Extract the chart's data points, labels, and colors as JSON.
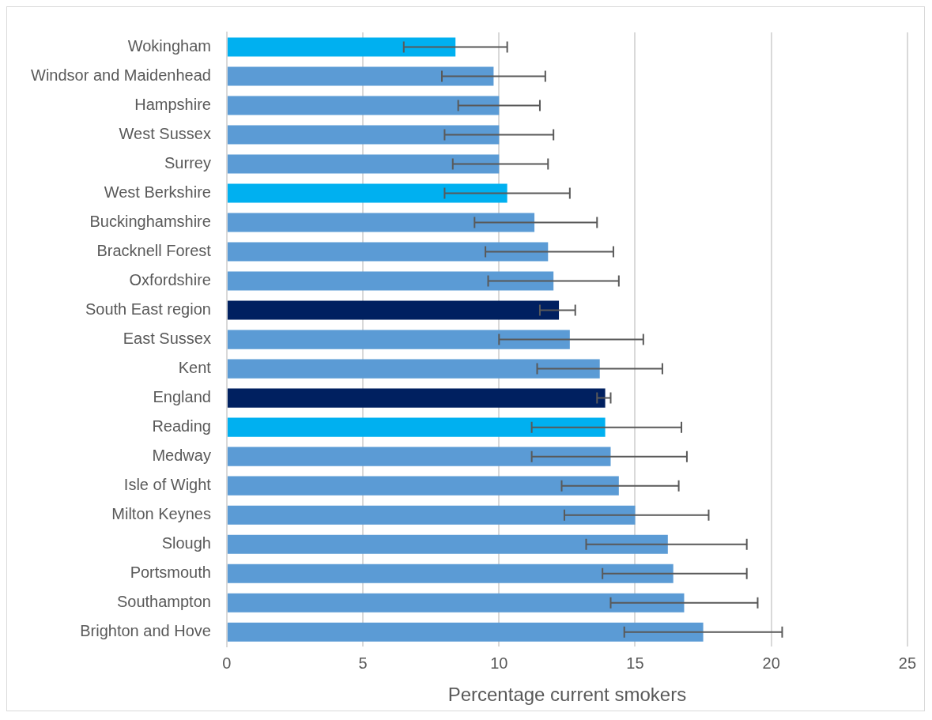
{
  "chart_data": {
    "type": "bar",
    "orientation": "horizontal",
    "xlabel": "Percentage current smokers",
    "categories": [
      "Wokingham",
      "Windsor and Maidenhead",
      "Hampshire",
      "West Sussex",
      "Surrey",
      "West Berkshire",
      "Buckinghamshire",
      "Bracknell Forest",
      "Oxfordshire",
      "South East region",
      "East Sussex",
      "Kent",
      "England",
      "Reading",
      "Medway",
      "Isle of Wight",
      "Milton Keynes",
      "Slough",
      "Portsmouth",
      "Southampton",
      "Brighton and Hove"
    ],
    "values": [
      8.4,
      9.8,
      10.0,
      10.0,
      10.0,
      10.3,
      11.3,
      11.8,
      12.0,
      12.2,
      12.6,
      13.7,
      13.9,
      13.9,
      14.1,
      14.4,
      15.0,
      16.2,
      16.4,
      16.8,
      17.5
    ],
    "colors": [
      "#00b0f0",
      "#5b9bd5",
      "#5b9bd5",
      "#5b9bd5",
      "#5b9bd5",
      "#00b0f0",
      "#5b9bd5",
      "#5b9bd5",
      "#5b9bd5",
      "#002060",
      "#5b9bd5",
      "#5b9bd5",
      "#002060",
      "#00b0f0",
      "#5b9bd5",
      "#5b9bd5",
      "#5b9bd5",
      "#5b9bd5",
      "#5b9bd5",
      "#5b9bd5",
      "#5b9bd5"
    ],
    "errors": [
      [
        6.5,
        10.3
      ],
      [
        7.9,
        11.7
      ],
      [
        8.5,
        11.5
      ],
      [
        8.0,
        12.0
      ],
      [
        8.3,
        11.8
      ],
      [
        8.0,
        12.6
      ],
      [
        9.1,
        13.6
      ],
      [
        9.5,
        14.2
      ],
      [
        9.6,
        14.4
      ],
      [
        11.5,
        12.8
      ],
      [
        10.0,
        15.3
      ],
      [
        11.4,
        16.0
      ],
      [
        13.6,
        14.1
      ],
      [
        11.2,
        16.7
      ],
      [
        11.2,
        16.9
      ],
      [
        12.3,
        16.6
      ],
      [
        12.4,
        17.7
      ],
      [
        13.2,
        19.1
      ],
      [
        13.8,
        19.1
      ],
      [
        14.1,
        19.5
      ],
      [
        14.6,
        20.4
      ]
    ],
    "xlim": [
      0,
      25
    ],
    "xticks": [
      0,
      5,
      10,
      15,
      20,
      25
    ],
    "grid": "x",
    "legend": false
  }
}
